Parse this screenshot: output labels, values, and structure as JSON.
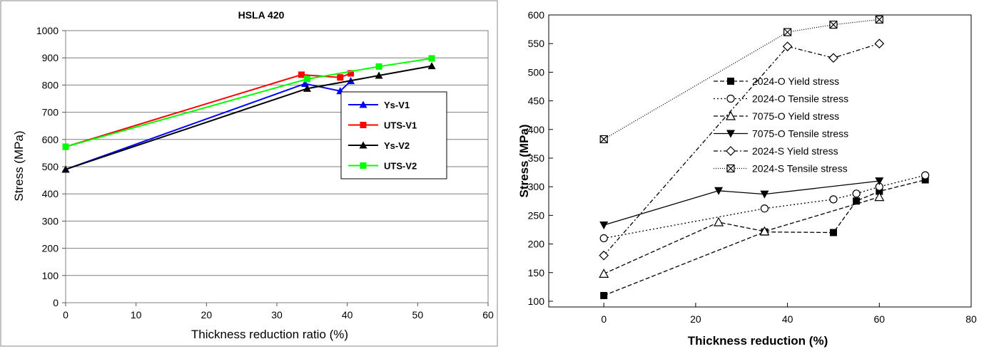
{
  "chart_data": [
    {
      "type": "line",
      "title": "HSLA 420",
      "xlabel": "Thickness reduction ratio (%)",
      "ylabel": "Stress (MPa)",
      "xlim": [
        0,
        60
      ],
      "ylim": [
        0,
        1000
      ],
      "xticks": [
        0,
        10,
        20,
        30,
        40,
        50,
        60
      ],
      "yticks": [
        0,
        100,
        200,
        300,
        400,
        500,
        600,
        700,
        800,
        900,
        1000
      ],
      "grid": "horizontal",
      "legend_position": "right",
      "series": [
        {
          "name": "Ys-V1",
          "color": "#0000ff",
          "marker": "triangle",
          "points": [
            [
              0,
              490
            ],
            [
              34,
              805
            ],
            [
              39,
              778
            ],
            [
              40.5,
              815
            ]
          ]
        },
        {
          "name": "UTS-V1",
          "color": "#ff0000",
          "marker": "square",
          "points": [
            [
              0,
              573
            ],
            [
              33.5,
              838
            ],
            [
              39,
              828
            ],
            [
              40.5,
              843
            ]
          ]
        },
        {
          "name": "Ys-V2",
          "color": "#000000",
          "marker": "triangle",
          "points": [
            [
              0,
              490
            ],
            [
              34.3,
              787
            ],
            [
              44.5,
              835
            ],
            [
              52,
              870
            ]
          ]
        },
        {
          "name": "UTS-V2",
          "color": "#00ff00",
          "marker": "square",
          "points": [
            [
              0,
              573
            ],
            [
              34.3,
              822
            ],
            [
              44.5,
              868
            ],
            [
              52,
              898
            ]
          ]
        }
      ]
    },
    {
      "type": "line",
      "xlabel": "Thickness reduction (%)",
      "ylabel": "Stress (MPa)",
      "xlim": [
        -12,
        80
      ],
      "ylim": [
        90,
        600
      ],
      "xticks": [
        0,
        20,
        40,
        60,
        80
      ],
      "yticks": [
        100,
        150,
        200,
        250,
        300,
        350,
        400,
        450,
        500,
        550,
        600
      ],
      "grid": "none",
      "legend_position": "right",
      "series": [
        {
          "name": "2024-O Yield stress",
          "color": "#000000",
          "marker": "filled-square",
          "dash": "6,3",
          "points": [
            [
              0,
              110
            ],
            [
              35,
              221
            ],
            [
              50,
              220
            ],
            [
              55,
              275
            ],
            [
              60,
              292
            ],
            [
              70,
              312
            ]
          ]
        },
        {
          "name": "2024-O Tensile stress",
          "color": "#000000",
          "marker": "open-circle",
          "dash": "2,3",
          "points": [
            [
              0,
              210
            ],
            [
              35,
              262
            ],
            [
              50,
              278
            ],
            [
              55,
              288
            ],
            [
              60,
              300
            ],
            [
              70,
              320
            ]
          ]
        },
        {
          "name": "7075-O Yield stress",
          "color": "#000000",
          "marker": "open-triangle",
          "dash": "6,3",
          "points": [
            [
              0,
              148
            ],
            [
              25,
              238
            ],
            [
              35,
              222
            ],
            [
              60,
              282
            ]
          ]
        },
        {
          "name": "7075-O Tensile stress",
          "color": "#000000",
          "marker": "filled-triangle-down",
          "dash": "",
          "points": [
            [
              0,
              233
            ],
            [
              25,
              293
            ],
            [
              35,
              287
            ],
            [
              60,
              310
            ]
          ]
        },
        {
          "name": "2024-S Yield stress",
          "color": "#000000",
          "marker": "open-diamond",
          "dash": "6,3,2,3",
          "points": [
            [
              0,
              180
            ],
            [
              40,
              545
            ],
            [
              50,
              525
            ],
            [
              60,
              550
            ]
          ]
        },
        {
          "name": "2024-S Tensile stress",
          "color": "#000000",
          "marker": "crossed-square",
          "dash": "1,2",
          "points": [
            [
              0,
              383
            ],
            [
              40,
              570
            ],
            [
              50,
              583
            ],
            [
              60,
              592
            ]
          ]
        }
      ]
    }
  ]
}
